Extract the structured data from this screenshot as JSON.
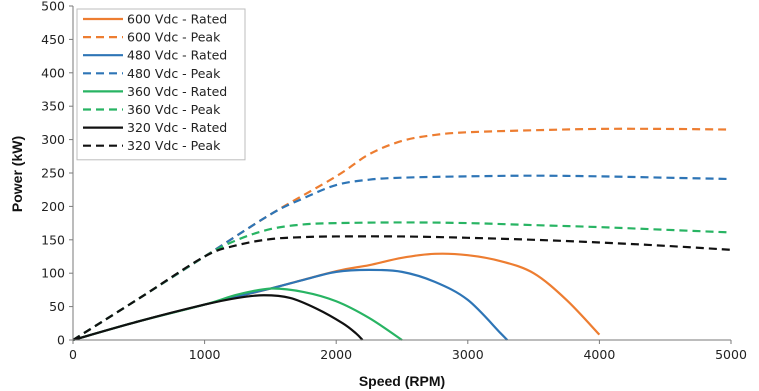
{
  "chart_data": {
    "type": "line",
    "title": "",
    "xlabel": "Speed (RPM)",
    "ylabel": "Power (kW)",
    "xlim": [
      0,
      5000
    ],
    "ylim": [
      0,
      500
    ],
    "xticks": [
      0,
      1000,
      2000,
      3000,
      4000,
      5000
    ],
    "yticks": [
      0,
      50,
      100,
      150,
      200,
      250,
      300,
      350,
      400,
      450,
      500
    ],
    "grid": false,
    "legend_position": "top-left",
    "series": [
      {
        "name": "600 Vdc - Rated",
        "color": "#ED7D31",
        "dash": "solid",
        "x": [
          0,
          500,
          1000,
          1500,
          2000,
          2250,
          2500,
          2750,
          3000,
          3250,
          3500,
          3750,
          4000
        ],
        "y": [
          0,
          28,
          53,
          77,
          103,
          112,
          123,
          129,
          127,
          118,
          100,
          60,
          8
        ]
      },
      {
        "name": "600 Vdc - Peak",
        "color": "#ED7D31",
        "dash": "dashed",
        "x": [
          0,
          500,
          1000,
          1500,
          2000,
          2250,
          2500,
          2750,
          3000,
          3500,
          4000,
          4500,
          5000
        ],
        "y": [
          0,
          62,
          125,
          188,
          245,
          278,
          298,
          307,
          311,
          314,
          316,
          316,
          315
        ]
      },
      {
        "name": "480 Vdc - Rated",
        "color": "#2E75B6",
        "dash": "solid",
        "x": [
          0,
          500,
          1000,
          1500,
          1750,
          2000,
          2250,
          2500,
          2750,
          3000,
          3250,
          3300
        ],
        "y": [
          0,
          28,
          53,
          77,
          90,
          102,
          105,
          102,
          87,
          60,
          10,
          0
        ]
      },
      {
        "name": "480 Vdc - Peak",
        "color": "#2E75B6",
        "dash": "dashed",
        "x": [
          0,
          500,
          1000,
          1500,
          1750,
          2000,
          2250,
          2500,
          3000,
          3500,
          4000,
          4500,
          5000
        ],
        "y": [
          0,
          62,
          125,
          188,
          212,
          232,
          240,
          243,
          245,
          246,
          245,
          243,
          241
        ]
      },
      {
        "name": "360 Vdc - Rated",
        "color": "#28B463",
        "dash": "solid",
        "x": [
          0,
          500,
          1000,
          1250,
          1500,
          1750,
          2000,
          2250,
          2500
        ],
        "y": [
          0,
          28,
          53,
          68,
          77,
          72,
          58,
          33,
          0
        ]
      },
      {
        "name": "360 Vdc - Peak",
        "color": "#28B463",
        "dash": "dashed",
        "x": [
          0,
          500,
          1000,
          1250,
          1500,
          1750,
          2000,
          2500,
          3000,
          3500,
          4000,
          4500,
          5000
        ],
        "y": [
          0,
          62,
          125,
          150,
          166,
          173,
          175,
          176,
          175,
          172,
          169,
          165,
          161
        ]
      },
      {
        "name": "320 Vdc - Rated",
        "color": "#111111",
        "dash": "solid",
        "x": [
          0,
          500,
          1000,
          1250,
          1450,
          1650,
          1850,
          2050,
          2150,
          2200
        ],
        "y": [
          0,
          28,
          53,
          63,
          67,
          63,
          47,
          25,
          10,
          0
        ]
      },
      {
        "name": "320 Vdc - Peak",
        "color": "#111111",
        "dash": "dashed",
        "x": [
          0,
          500,
          1000,
          1250,
          1500,
          1750,
          2000,
          2500,
          3000,
          3500,
          4000,
          4500,
          5000
        ],
        "y": [
          0,
          62,
          125,
          142,
          151,
          154,
          155,
          155,
          153,
          150,
          146,
          141,
          135
        ]
      }
    ]
  }
}
